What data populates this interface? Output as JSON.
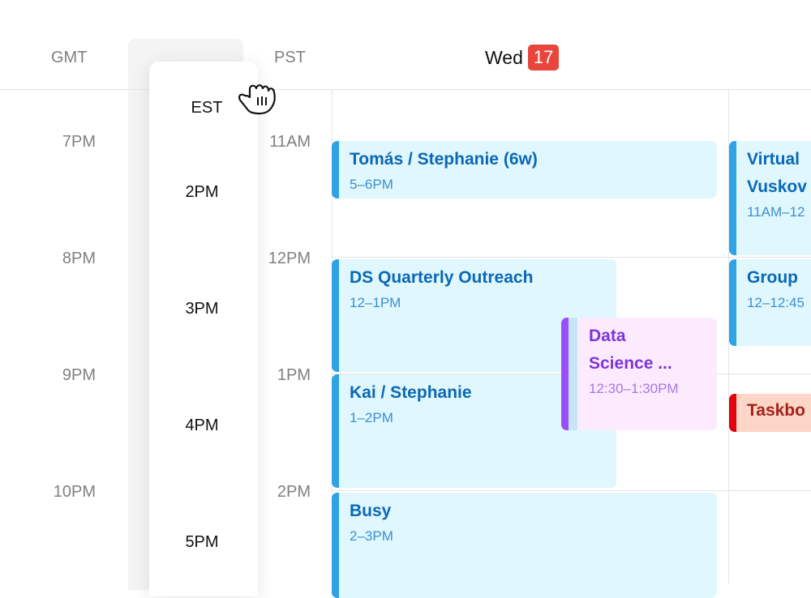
{
  "header": {
    "tz_left": "GMT",
    "tz_dragged": "EST",
    "tz_right": "PST",
    "day": "Wed",
    "date": "17",
    "date_badge_color": "#e8453c"
  },
  "gmt_hours": [
    "7PM",
    "8PM",
    "9PM",
    "10PM"
  ],
  "est_hours": [
    "2PM",
    "3PM",
    "4PM",
    "5PM"
  ],
  "pst_hours": [
    "11AM",
    "12PM",
    "1PM",
    "2PM"
  ],
  "events": [
    {
      "title": "Tomás / Stephanie (6w)",
      "time": "5–6PM"
    },
    {
      "title": "DS Quarterly Outreach",
      "time": "12–1PM"
    },
    {
      "title": "Kai / Stephanie",
      "time": "1–2PM"
    },
    {
      "title": "Busy",
      "time": "2–3PM"
    },
    {
      "title": "Data Science ...",
      "title_line1": "Data",
      "title_line2": "Science ...",
      "time": "12:30–1:30PM",
      "color": "#9b4dff"
    },
    {
      "title": "Virtual Vuskov",
      "title_line1": "Virtual",
      "title_line2": "Vuskov",
      "time": "11AM–12"
    },
    {
      "title": "Group",
      "time": "12–12:45"
    },
    {
      "title": "Taskbo",
      "color": "#e3000f"
    }
  ],
  "cursor": "grab-hand-icon"
}
